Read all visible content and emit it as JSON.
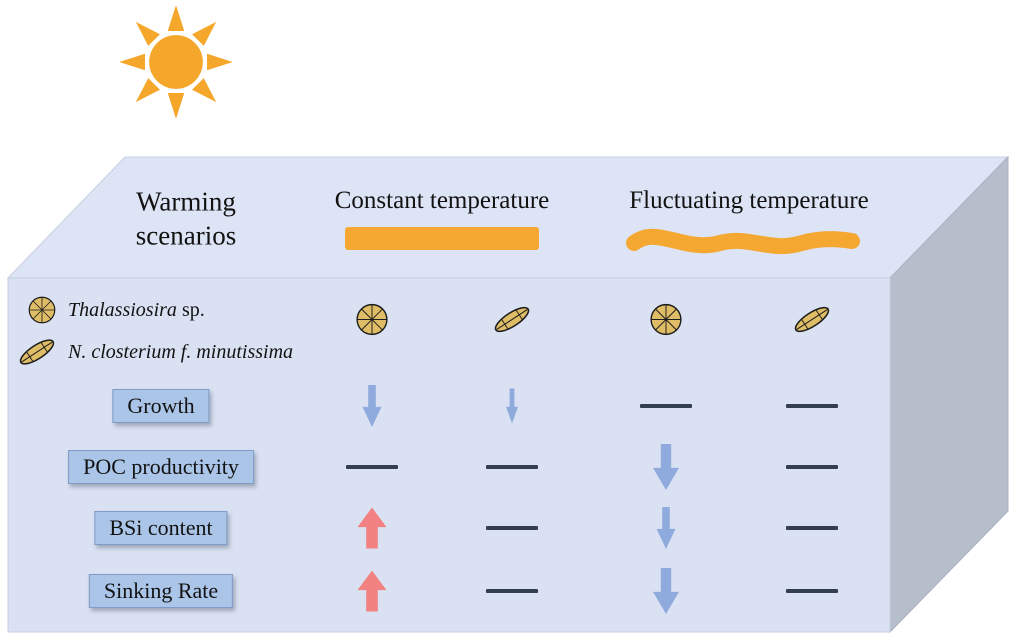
{
  "top_face": {
    "header": "Warming scenarios",
    "columns": [
      {
        "label": "Constant temperature",
        "band": "straight"
      },
      {
        "label": "Fluctuating temperature",
        "band": "wavy"
      }
    ]
  },
  "legend": {
    "items": [
      {
        "icon": "centric-diatom-icon",
        "italic": "Thalassiosira",
        "plain": " sp."
      },
      {
        "icon": "pennate-diatom-icon",
        "italic": "N. closterium f. minutissima",
        "plain": ""
      }
    ]
  },
  "matrix": {
    "column_species": [
      "centric",
      "pennate",
      "centric",
      "pennate"
    ],
    "rows": [
      {
        "label": "Growth",
        "cells": [
          {
            "type": "arrow",
            "dir": "down",
            "size": "m"
          },
          {
            "type": "arrow",
            "dir": "down",
            "size": "s"
          },
          {
            "type": "dash"
          },
          {
            "type": "dash"
          }
        ]
      },
      {
        "label": "POC productivity",
        "cells": [
          {
            "type": "dash"
          },
          {
            "type": "dash"
          },
          {
            "type": "arrow",
            "dir": "down",
            "size": "l"
          },
          {
            "type": "dash"
          }
        ]
      },
      {
        "label": "BSi content",
        "cells": [
          {
            "type": "arrow",
            "dir": "up",
            "size": "l"
          },
          {
            "type": "dash"
          },
          {
            "type": "arrow",
            "dir": "down",
            "size": "m"
          },
          {
            "type": "dash"
          }
        ]
      },
      {
        "label": "Sinking Rate",
        "cells": [
          {
            "type": "arrow",
            "dir": "up",
            "size": "l"
          },
          {
            "type": "dash"
          },
          {
            "type": "arrow",
            "dir": "down",
            "size": "l"
          },
          {
            "type": "dash"
          }
        ]
      }
    ]
  },
  "colors": {
    "sun": "#F5A72B",
    "band": "#F4A832",
    "arrow_up": "#F28181",
    "arrow_down": "#8FAADC",
    "dash": "#333F50",
    "diatom_fill": "#DFBC66",
    "box_top": "#DDE4F5",
    "box_front": "#DAE1F2",
    "box_side": "#B6BECC",
    "label_box": "#ABC5E8"
  }
}
